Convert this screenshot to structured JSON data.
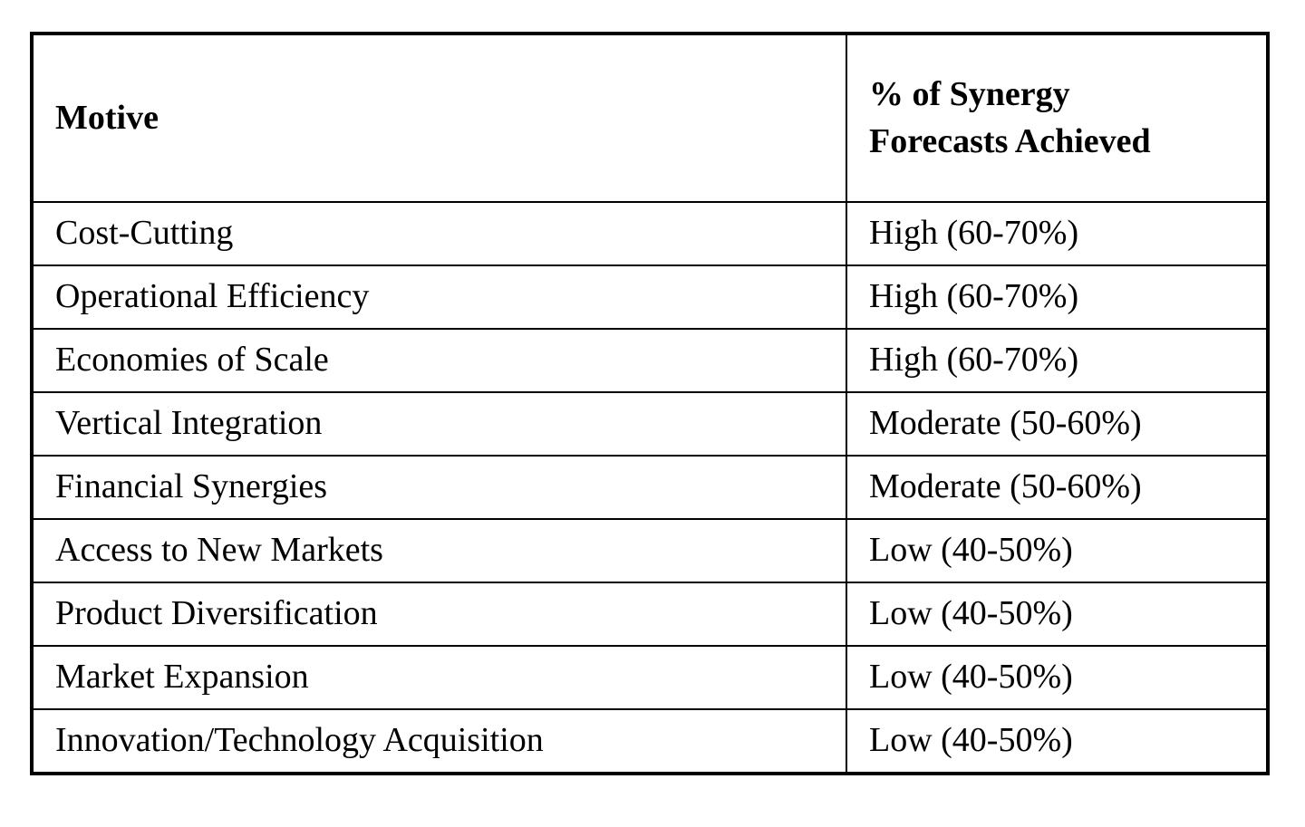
{
  "table": {
    "columns": [
      {
        "label": "Motive"
      },
      {
        "label": "% of Synergy Forecasts Achieved"
      }
    ],
    "rows": [
      {
        "motive": "Cost-Cutting",
        "value": "High (60-70%)"
      },
      {
        "motive": "Operational Efficiency",
        "value": "High (60-70%)"
      },
      {
        "motive": "Economies of Scale",
        "value": "High (60-70%)"
      },
      {
        "motive": "Vertical Integration",
        "value": "Moderate (50-60%)"
      },
      {
        "motive": "Financial Synergies",
        "value": "Moderate (50-60%)"
      },
      {
        "motive": "Access to New Markets",
        "value": "Low (40-50%)"
      },
      {
        "motive": "Product Diversification",
        "value": "Low (40-50%)"
      },
      {
        "motive": "Market Expansion",
        "value": "Low (40-50%)"
      },
      {
        "motive": "Innovation/Technology Acquisition",
        "value": "Low (40-50%)"
      }
    ],
    "colors": {
      "border": "#000000",
      "text": "#000000",
      "background": "#ffffff"
    }
  }
}
